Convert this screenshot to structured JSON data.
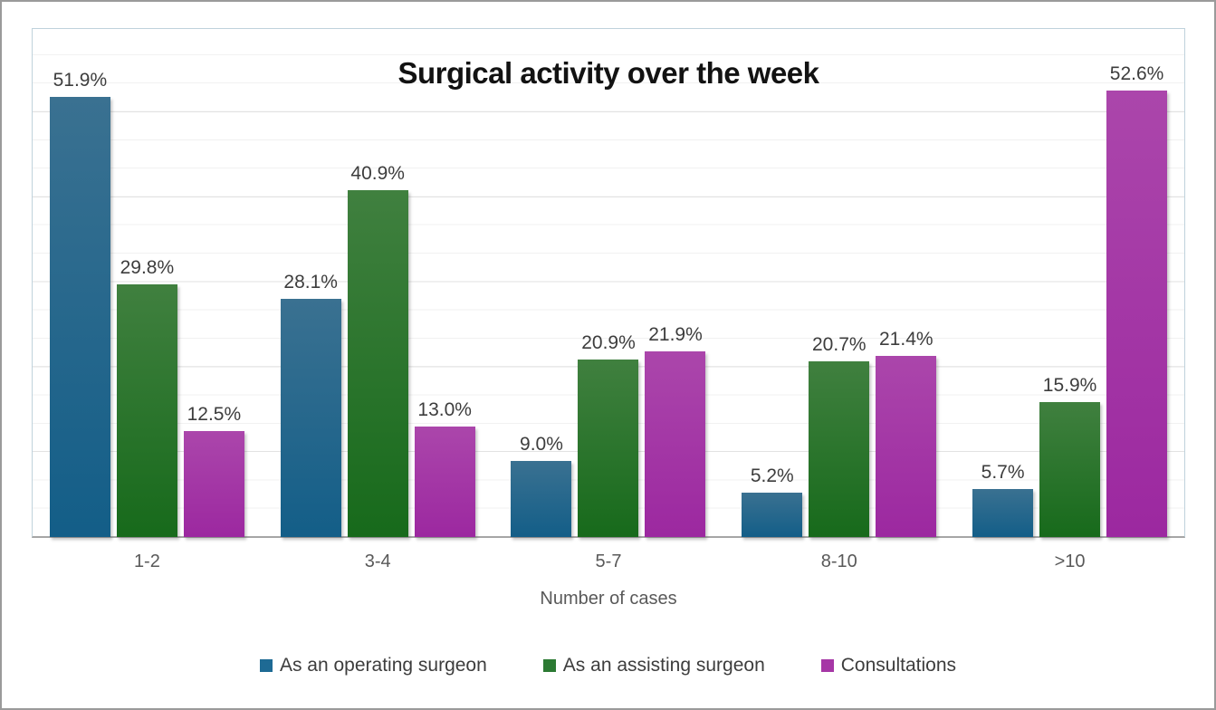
{
  "chart_data": {
    "type": "bar",
    "title": "Surgical activity over the week",
    "xlabel": "Number of cases",
    "ylabel": "",
    "ylim": [
      0,
      60
    ],
    "grid": true,
    "legend_position": "bottom",
    "label_format": "{value}%",
    "categories": [
      "1-2",
      "3-4",
      "5-7",
      "8-10",
      ">10"
    ],
    "series": [
      {
        "name": "As an operating surgeon",
        "color": "#1e6a94",
        "values": [
          51.9,
          28.1,
          9.0,
          5.2,
          5.7
        ]
      },
      {
        "name": "As an assisting surgeon",
        "color": "#2c7a33",
        "values": [
          29.8,
          40.9,
          20.9,
          20.7,
          15.9
        ]
      },
      {
        "name": "Consultations",
        "color": "#a637a6",
        "values": [
          12.5,
          13.0,
          21.9,
          21.4,
          52.6
        ]
      }
    ]
  }
}
